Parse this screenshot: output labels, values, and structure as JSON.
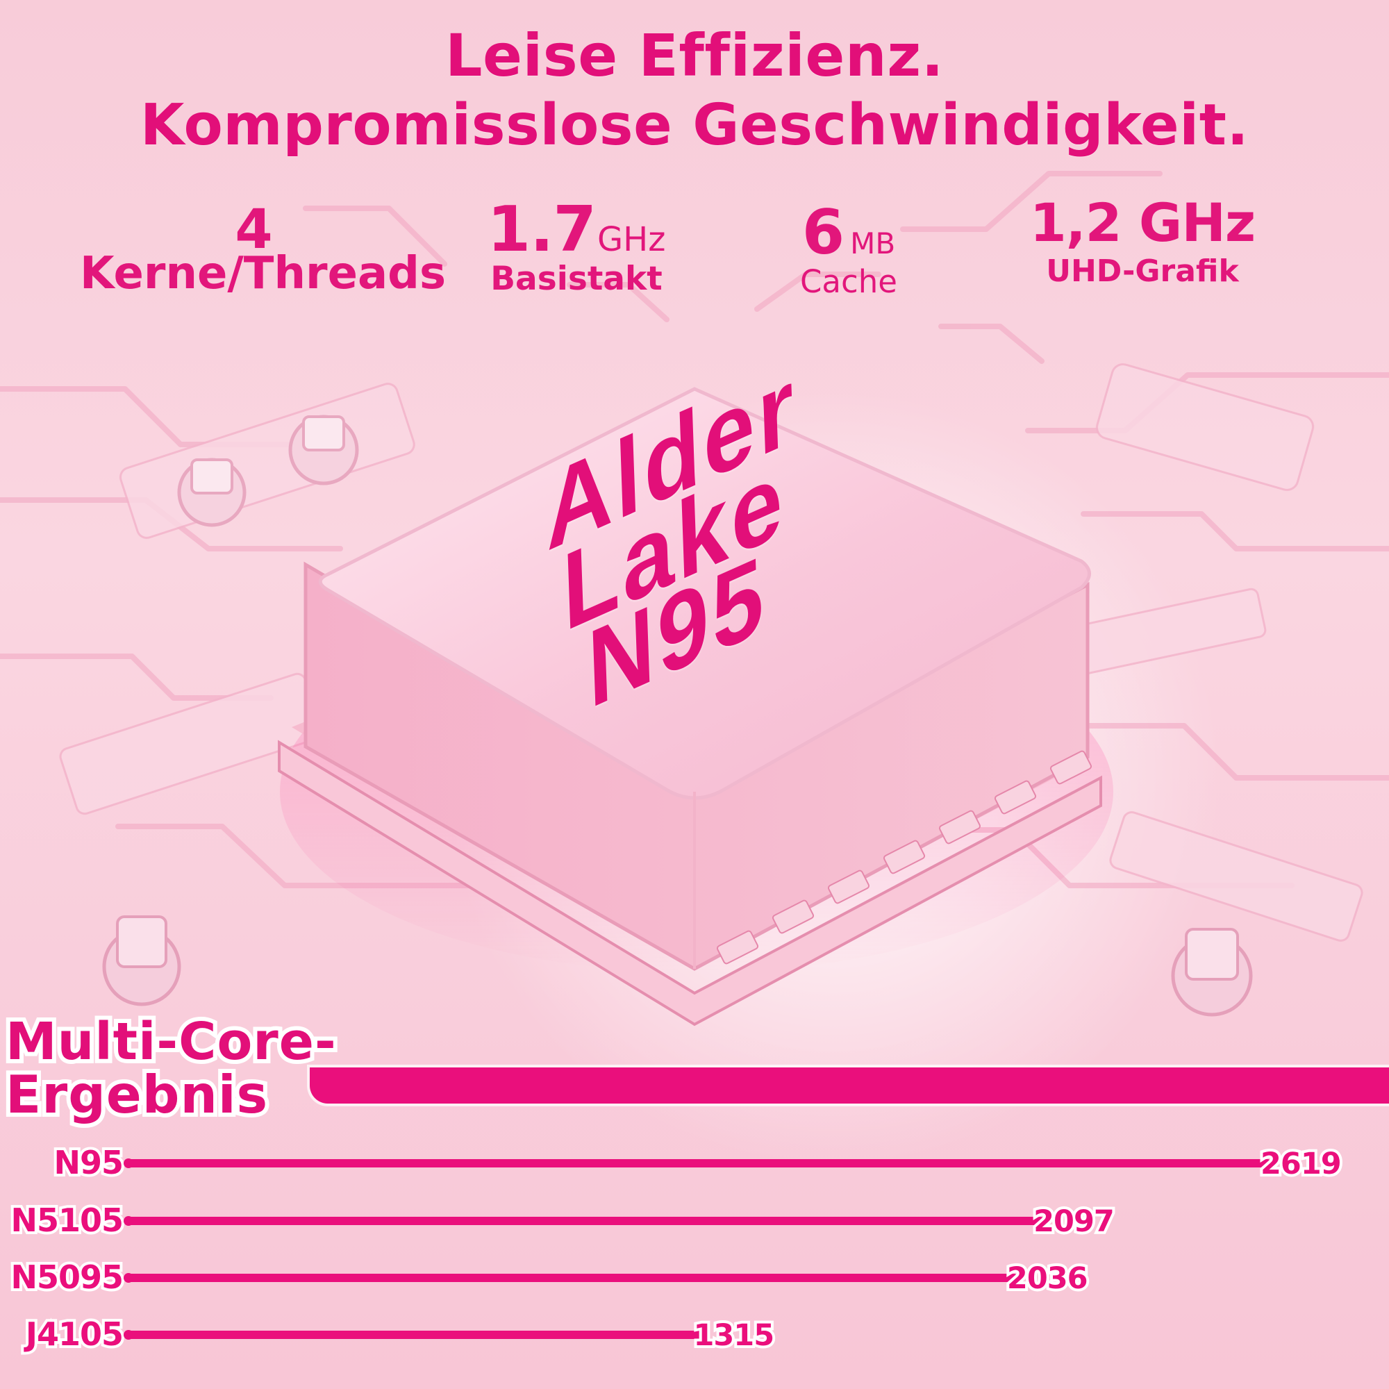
{
  "header": {
    "line1": "Leise Effizienz.",
    "line2": "Kompromisslose Geschwindigkeit."
  },
  "specs": {
    "cores": {
      "value": "4",
      "label": "Kerne/Threads"
    },
    "clock": {
      "value": "1.7",
      "unit": "GHz",
      "label": "Basistakt"
    },
    "cache": {
      "value": "6",
      "unit": "MB",
      "label": "Cache"
    },
    "gpu": {
      "value": "1,2 GHz",
      "label": "UHD-Grafik"
    }
  },
  "chip": {
    "line1": "Alder",
    "line2": "Lake",
    "line3": "N95"
  },
  "chart": {
    "title_line1": "Multi-Core-",
    "title_line2": "Ergebnis"
  },
  "chart_data": {
    "type": "bar",
    "categories": [
      "N95",
      "N5105",
      "N5095",
      "J4105"
    ],
    "values": [
      2619,
      2097,
      2036,
      1315
    ],
    "title": "Multi-Core-Ergebnis",
    "xlabel": "",
    "ylabel": "",
    "ylim": [
      0,
      2619
    ],
    "colors": {
      "bar": "#ea0f7c",
      "text": "#e20f79",
      "outline": "#ffffff"
    }
  }
}
